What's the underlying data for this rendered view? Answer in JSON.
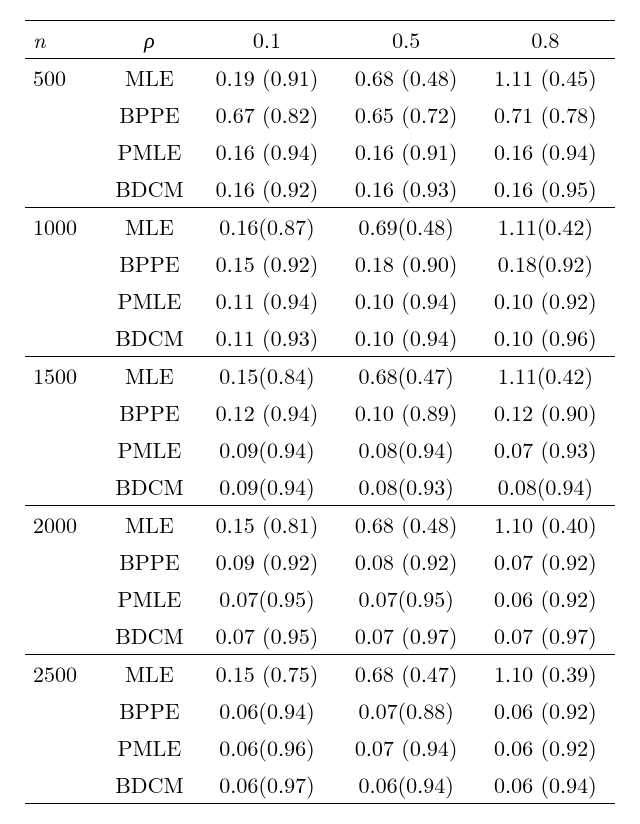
{
  "header": {
    "n_label": "n",
    "rho_label": "ρ",
    "col_0_1": "0.1",
    "col_0_5": "0.5",
    "col_0_8": "0.8"
  },
  "groups": [
    {
      "n": "500",
      "rows": [
        {
          "method": "MLE",
          "v1": "0.19 (0.91)",
          "v2": "0.68 (0.48)",
          "v3": "1.11 (0.45)"
        },
        {
          "method": "BPPE",
          "v1": "0.67 (0.82)",
          "v2": "0.65 (0.72)",
          "v3": "0.71 (0.78)"
        },
        {
          "method": "PMLE",
          "v1": "0.16 (0.94)",
          "v2": "0.16 (0.91)",
          "v3": "0.16 (0.94)"
        },
        {
          "method": "BDCM",
          "v1": "0.16 (0.92)",
          "v2": "0.16 (0.93)",
          "v3": "0.16 (0.95)"
        }
      ]
    },
    {
      "n": "1000",
      "rows": [
        {
          "method": "MLE",
          "v1": "0.16(0.87)",
          "v2": "0.69(0.48)",
          "v3": "1.11(0.42)"
        },
        {
          "method": "BPPE",
          "v1": "0.15 (0.92)",
          "v2": "0.18 (0.90)",
          "v3": "0.18(0.92)"
        },
        {
          "method": "PMLE",
          "v1": "0.11 (0.94)",
          "v2": "0.10 (0.94)",
          "v3": "0.10 (0.92)"
        },
        {
          "method": "BDCM",
          "v1": "0.11 (0.93)",
          "v2": "0.10 (0.94)",
          "v3": "0.10 (0.96)"
        }
      ]
    },
    {
      "n": "1500",
      "rows": [
        {
          "method": "MLE",
          "v1": "0.15(0.84)",
          "v2": "0.68(0.47)",
          "v3": "1.11(0.42)"
        },
        {
          "method": "BPPE",
          "v1": "0.12 (0.94)",
          "v2": "0.10 (0.89)",
          "v3": "0.12 (0.90)"
        },
        {
          "method": "PMLE",
          "v1": "0.09(0.94)",
          "v2": "0.08(0.94)",
          "v3": "0.07 (0.93)"
        },
        {
          "method": "BDCM",
          "v1": "0.09(0.94)",
          "v2": "0.08(0.93)",
          "v3": "0.08(0.94)"
        }
      ]
    },
    {
      "n": "2000",
      "rows": [
        {
          "method": "MLE",
          "v1": "0.15 (0.81)",
          "v2": "0.68 (0.48)",
          "v3": "1.10 (0.40)"
        },
        {
          "method": "BPPE",
          "v1": "0.09 (0.92)",
          "v2": "0.08 (0.92)",
          "v3": "0.07 (0.92)"
        },
        {
          "method": "PMLE",
          "v1": "0.07(0.95)",
          "v2": "0.07(0.95)",
          "v3": "0.06 (0.92)"
        },
        {
          "method": "BDCM",
          "v1": "0.07 (0.95)",
          "v2": "0.07 (0.97)",
          "v3": "0.07 (0.97)"
        }
      ]
    },
    {
      "n": "2500",
      "rows": [
        {
          "method": "MLE",
          "v1": "0.15 (0.75)",
          "v2": "0.68 (0.47)",
          "v3": "1.10 (0.39)"
        },
        {
          "method": "BPPE",
          "v1": "0.06(0.94)",
          "v2": "0.07(0.88)",
          "v3": "0.06 (0.92)"
        },
        {
          "method": "PMLE",
          "v1": "0.06(0.96)",
          "v2": "0.07 (0.94)",
          "v3": "0.06 (0.92)"
        },
        {
          "method": "BDCM",
          "v1": "0.06(0.97)",
          "v2": "0.06(0.94)",
          "v3": "0.06 (0.94)"
        }
      ]
    }
  ],
  "style": {
    "font_family": "Computer Modern / Latin Modern",
    "font_size_pt": 16,
    "text_color": "#000000",
    "background_color": "#ffffff",
    "rule_color": "#000000",
    "n_align": "left",
    "rho_align": "center",
    "value_align": "center",
    "columns": [
      "n",
      "rho",
      "0.1",
      "0.5",
      "0.8"
    ]
  }
}
